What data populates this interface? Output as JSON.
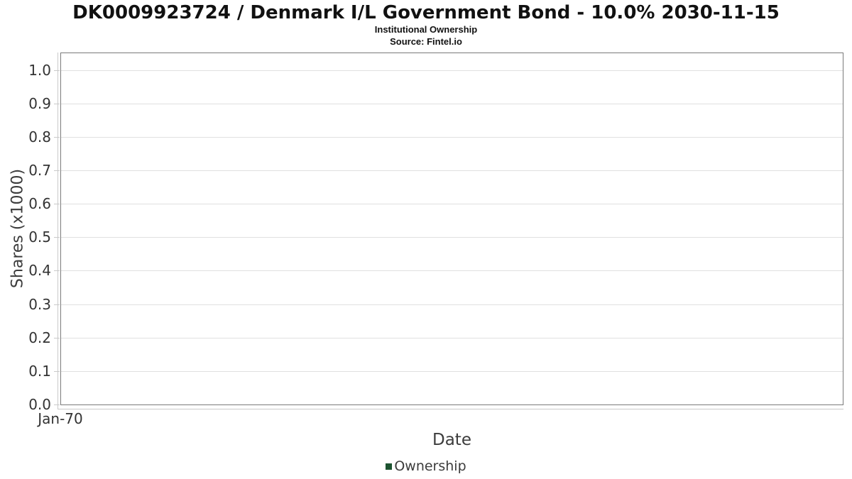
{
  "header": {
    "title": "DK0009923724 / Denmark I/L Government Bond - 10.0% 2030-11-15",
    "subtitle": "Institutional Ownership",
    "source": "Source: Fintel.io"
  },
  "chart_data": {
    "type": "line",
    "title": "DK0009923724 / Denmark I/L Government Bond - 10.0% 2030-11-15",
    "subtitle": "Institutional Ownership",
    "source": "Source: Fintel.io",
    "xlabel": "Date",
    "ylabel": "Shares (x1000)",
    "ylim": [
      0,
      1.05
    ],
    "yticks": [
      0,
      0.1,
      0.2,
      0.3,
      0.4,
      0.5,
      0.6,
      0.7,
      0.8,
      0.9,
      1.0
    ],
    "ytick_labels": [
      "0.0",
      "0.1",
      "0.2",
      "0.3",
      "0.4",
      "0.5",
      "0.6",
      "0.7",
      "0.8",
      "0.9",
      "1.0"
    ],
    "xtick_labels": [
      "Jan-70"
    ],
    "grid": true,
    "legend_position": "bottom",
    "series": [
      {
        "name": "Ownership",
        "color": "#1d5330",
        "x": [],
        "values": []
      }
    ]
  },
  "legend": {
    "items": [
      {
        "label": "Ownership",
        "color": "#1d5330"
      }
    ]
  },
  "colors": {
    "background": "#ffffff",
    "title": "#111111",
    "tick_label": "#333333",
    "axis_title": "#3c3c3c",
    "grid": "#e0e0e0",
    "plot_border": "#7a7a7a",
    "axis_line": "#c9c9c9",
    "legend_marker": "#1d5330"
  }
}
